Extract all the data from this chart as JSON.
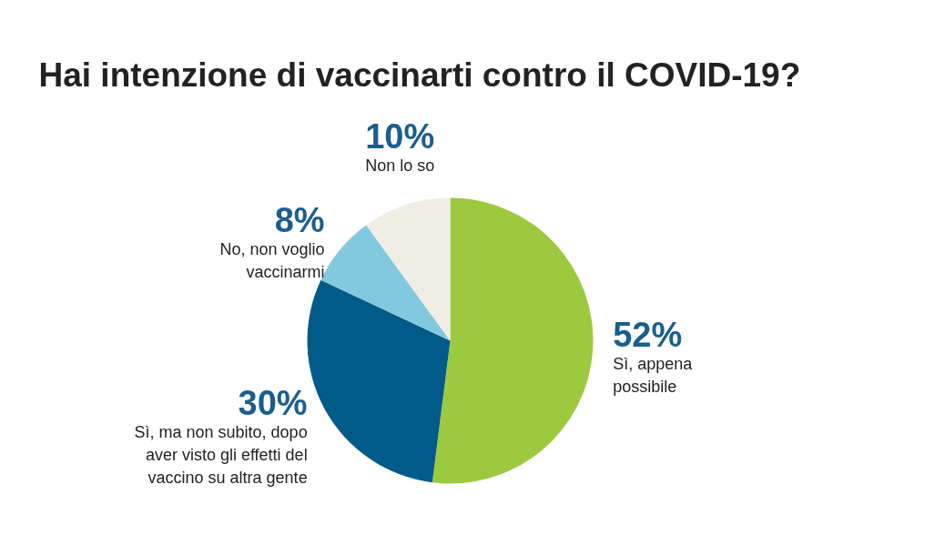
{
  "chart_data": {
    "type": "pie",
    "title": "Hai intenzione di vaccinarti contro il COVID-19?",
    "categories": [
      "Sì, appena\npossibile",
      "Sì, ma non subito, dopo\naver visto gli effetti del\nvaccino su altra gente",
      "No, non voglio\nvaccinarmi",
      "Non lo so"
    ],
    "values": [
      52,
      30,
      8,
      10
    ],
    "colors": [
      "#9cc93e",
      "#005b88",
      "#82c9df",
      "#efede4"
    ],
    "value_labels": [
      "52%",
      "30%",
      "8%",
      "10%"
    ]
  }
}
